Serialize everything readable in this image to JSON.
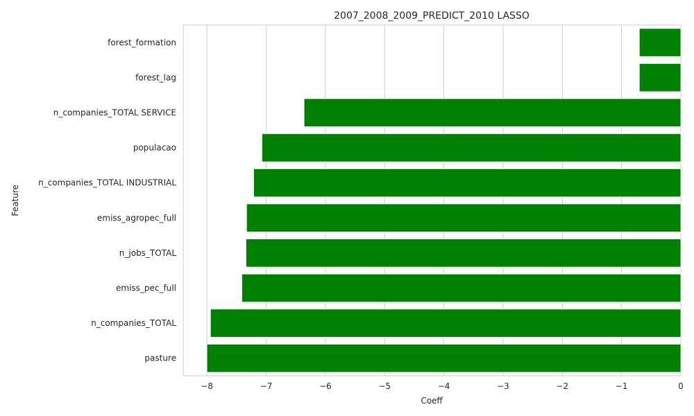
{
  "chart_data": {
    "type": "bar",
    "orientation": "horizontal",
    "title": "2007_2008_2009_PREDICT_2010 LASSO",
    "xlabel": "Coeff",
    "ylabel": "Feature",
    "categories": [
      "forest_formation",
      "forest_lag",
      "n_companies_TOTAL SERVICE",
      "populacao",
      "n_companies_TOTAL INDUSTRIAL",
      "emiss_agropec_full",
      "n_jobs_TOTAL",
      "emiss_pec_full",
      "n_companies_TOTAL",
      "pasture"
    ],
    "values": [
      -0.7,
      -0.7,
      -6.36,
      -7.07,
      -7.21,
      -7.33,
      -7.34,
      -7.41,
      -7.94,
      -8.0
    ],
    "xlim": [
      -8.4,
      0
    ],
    "xticks": [
      -8,
      -7,
      -6,
      -5,
      -4,
      -3,
      -2,
      -1,
      0
    ],
    "xtick_labels": [
      "−8",
      "−7",
      "−6",
      "−5",
      "−4",
      "−3",
      "−2",
      "−1",
      "0"
    ],
    "grid": true,
    "bar_color": "#008000"
  }
}
